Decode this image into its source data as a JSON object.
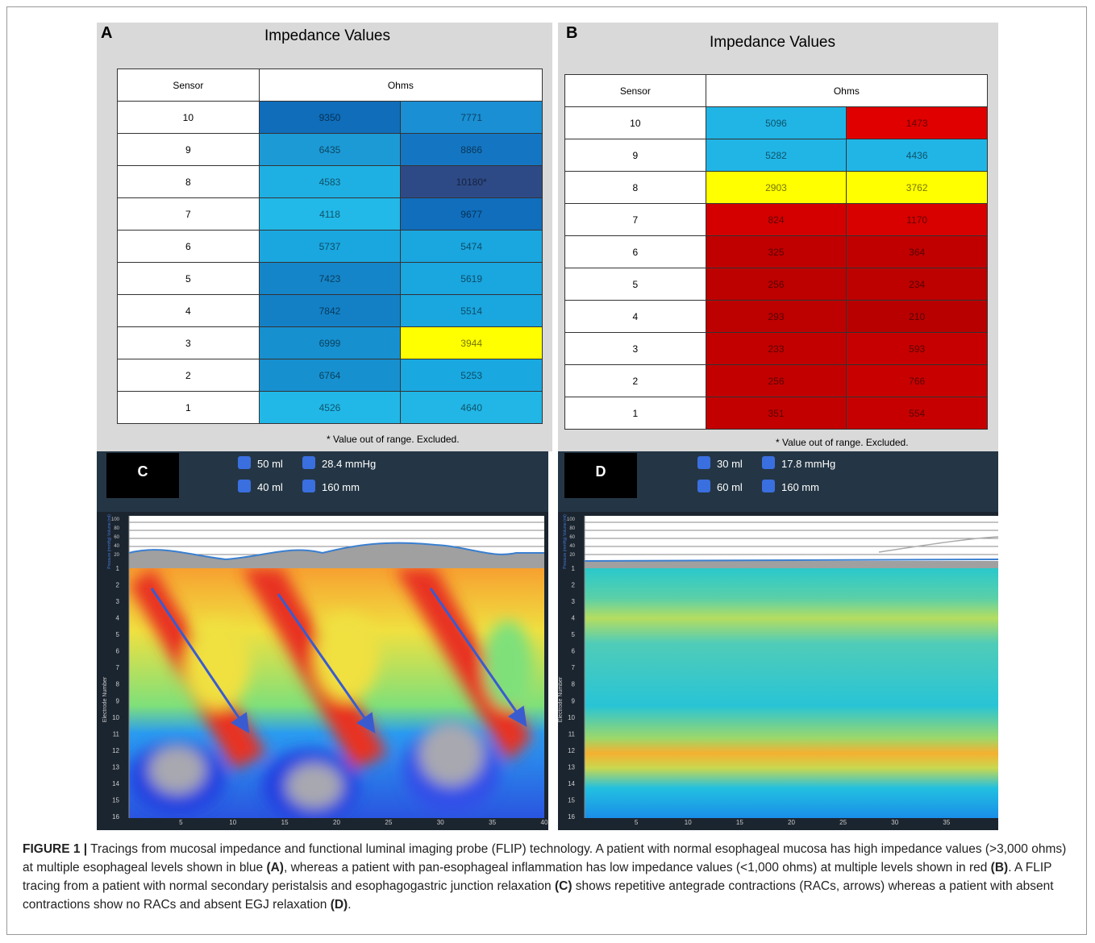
{
  "panels": [
    {
      "label": "A",
      "title": "Impedance Values",
      "headers": [
        "Sensor",
        "Ohms"
      ],
      "footnote": "* Value out of range. Excluded.",
      "rows": [
        {
          "sensor": "10",
          "cells": [
            {
              "text": "9350",
              "color": "#0f6dba"
            },
            {
              "text": "7771",
              "color": "#1a8fd4"
            }
          ]
        },
        {
          "sensor": "9",
          "cells": [
            {
              "text": "6435",
              "color": "#1c9ad6"
            },
            {
              "text": "8866",
              "color": "#1476c2"
            }
          ]
        },
        {
          "sensor": "8",
          "cells": [
            {
              "text": "4583",
              "color": "#1fb0e3"
            },
            {
              "text": "10180*",
              "color": "#2e4a86"
            }
          ]
        },
        {
          "sensor": "7",
          "cells": [
            {
              "text": "4118",
              "color": "#22b8e8"
            },
            {
              "text": "9677",
              "color": "#106ebd"
            }
          ]
        },
        {
          "sensor": "6",
          "cells": [
            {
              "text": "5737",
              "color": "#1aa6df"
            },
            {
              "text": "5474",
              "color": "#1aa6df"
            }
          ]
        },
        {
          "sensor": "5",
          "cells": [
            {
              "text": "7423",
              "color": "#1585c9"
            },
            {
              "text": "5619",
              "color": "#1aa6df"
            }
          ]
        },
        {
          "sensor": "4",
          "cells": [
            {
              "text": "7842",
              "color": "#1380c6"
            },
            {
              "text": "5514",
              "color": "#1aa6df"
            }
          ]
        },
        {
          "sensor": "3",
          "cells": [
            {
              "text": "6999",
              "color": "#1790cf"
            },
            {
              "text": "3944",
              "color": "#ffff00"
            }
          ]
        },
        {
          "sensor": "2",
          "cells": [
            {
              "text": "6764",
              "color": "#1790cf"
            },
            {
              "text": "5253",
              "color": "#1aa8e0"
            }
          ]
        },
        {
          "sensor": "1",
          "cells": [
            {
              "text": "4526",
              "color": "#21b8e8"
            },
            {
              "text": "4640",
              "color": "#21b6e6"
            }
          ]
        }
      ]
    },
    {
      "label": "B",
      "title": "Impedance Values",
      "headers": [
        "Sensor",
        "Ohms"
      ],
      "footnote": "* Value out of range. Excluded.",
      "rows": [
        {
          "sensor": "10",
          "cells": [
            {
              "text": "5096",
              "color": "#21b5e6"
            },
            {
              "text": "1473",
              "color": "#e00000"
            }
          ]
        },
        {
          "sensor": "9",
          "cells": [
            {
              "text": "5282",
              "color": "#21b5e6"
            },
            {
              "text": "4436",
              "color": "#21b5e6"
            }
          ]
        },
        {
          "sensor": "8",
          "cells": [
            {
              "text": "2903",
              "color": "#ffff00"
            },
            {
              "text": "3762",
              "color": "#ffff00"
            }
          ]
        },
        {
          "sensor": "7",
          "cells": [
            {
              "text": "824",
              "color": "#d40000"
            },
            {
              "text": "1170",
              "color": "#d90000"
            }
          ]
        },
        {
          "sensor": "6",
          "cells": [
            {
              "text": "325",
              "color": "#c00000"
            },
            {
              "text": "364",
              "color": "#c00000"
            }
          ]
        },
        {
          "sensor": "5",
          "cells": [
            {
              "text": "256",
              "color": "#bd0000"
            },
            {
              "text": "234",
              "color": "#bd0000"
            }
          ]
        },
        {
          "sensor": "4",
          "cells": [
            {
              "text": "293",
              "color": "#bd0000"
            },
            {
              "text": "210",
              "color": "#b80000"
            }
          ]
        },
        {
          "sensor": "3",
          "cells": [
            {
              "text": "233",
              "color": "#c20000"
            },
            {
              "text": "593",
              "color": "#c60000"
            }
          ]
        },
        {
          "sensor": "2",
          "cells": [
            {
              "text": "256",
              "color": "#c20000"
            },
            {
              "text": "766",
              "color": "#c80000"
            }
          ]
        },
        {
          "sensor": "1",
          "cells": [
            {
              "text": "351",
              "color": "#c20000"
            },
            {
              "text": "554",
              "color": "#c60000"
            }
          ]
        }
      ]
    }
  ],
  "tracings": [
    {
      "label": "C",
      "volume": "50 ml",
      "pressure": "28.4 mmHg",
      "fill": "40 ml",
      "length": "160 mm",
      "top_axis_label": "Pressure (mmHg) Volume (ml)",
      "y_axis_label": "Electrode Number",
      "pressure_ticks": [
        "100",
        "80",
        "60",
        "40",
        "20"
      ],
      "electrode_ticks": [
        "1",
        "2",
        "3",
        "4",
        "5",
        "6",
        "7",
        "8",
        "9",
        "10",
        "11",
        "12",
        "13",
        "14",
        "15",
        "16"
      ],
      "x_ticks": [
        "5",
        "10",
        "15",
        "20",
        "25",
        "30",
        "35",
        "40"
      ]
    },
    {
      "label": "D",
      "volume": "30 ml",
      "pressure": "17.8 mmHg",
      "fill": "60 ml",
      "length": "160 mm",
      "top_axis_label": "Pressure (mmHg) Volume (ml)",
      "y_axis_label": "Electrode Number",
      "pressure_ticks": [
        "100",
        "80",
        "60",
        "40",
        "20"
      ],
      "electrode_ticks": [
        "1",
        "2",
        "3",
        "4",
        "5",
        "6",
        "7",
        "8",
        "9",
        "10",
        "11",
        "12",
        "13",
        "14",
        "15",
        "16"
      ],
      "x_ticks": [
        "5",
        "10",
        "15",
        "20",
        "25",
        "30",
        "35"
      ]
    }
  ],
  "caption": {
    "label": "FIGURE 1 |",
    "parts": [
      " Tracings from mucosal impedance and functional luminal imaging probe (FLIP) technology. A patient with normal esophageal mucosa has high impedance values (>3,000 ohms) at multiple esophageal levels shown in blue ",
      "(A)",
      ", whereas a patient with pan-esophageal inflammation has low impedance values (<1,000 ohms) at multiple levels shown in red ",
      "(B)",
      ". A FLIP tracing from a patient with normal secondary peristalsis and esophagogastric junction relaxation ",
      "(C)",
      " shows repetitive antegrade contractions (RACs, arrows) whereas a patient with absent contractions show no RACs and absent EGJ relaxation ",
      "(D)",
      "."
    ]
  }
}
